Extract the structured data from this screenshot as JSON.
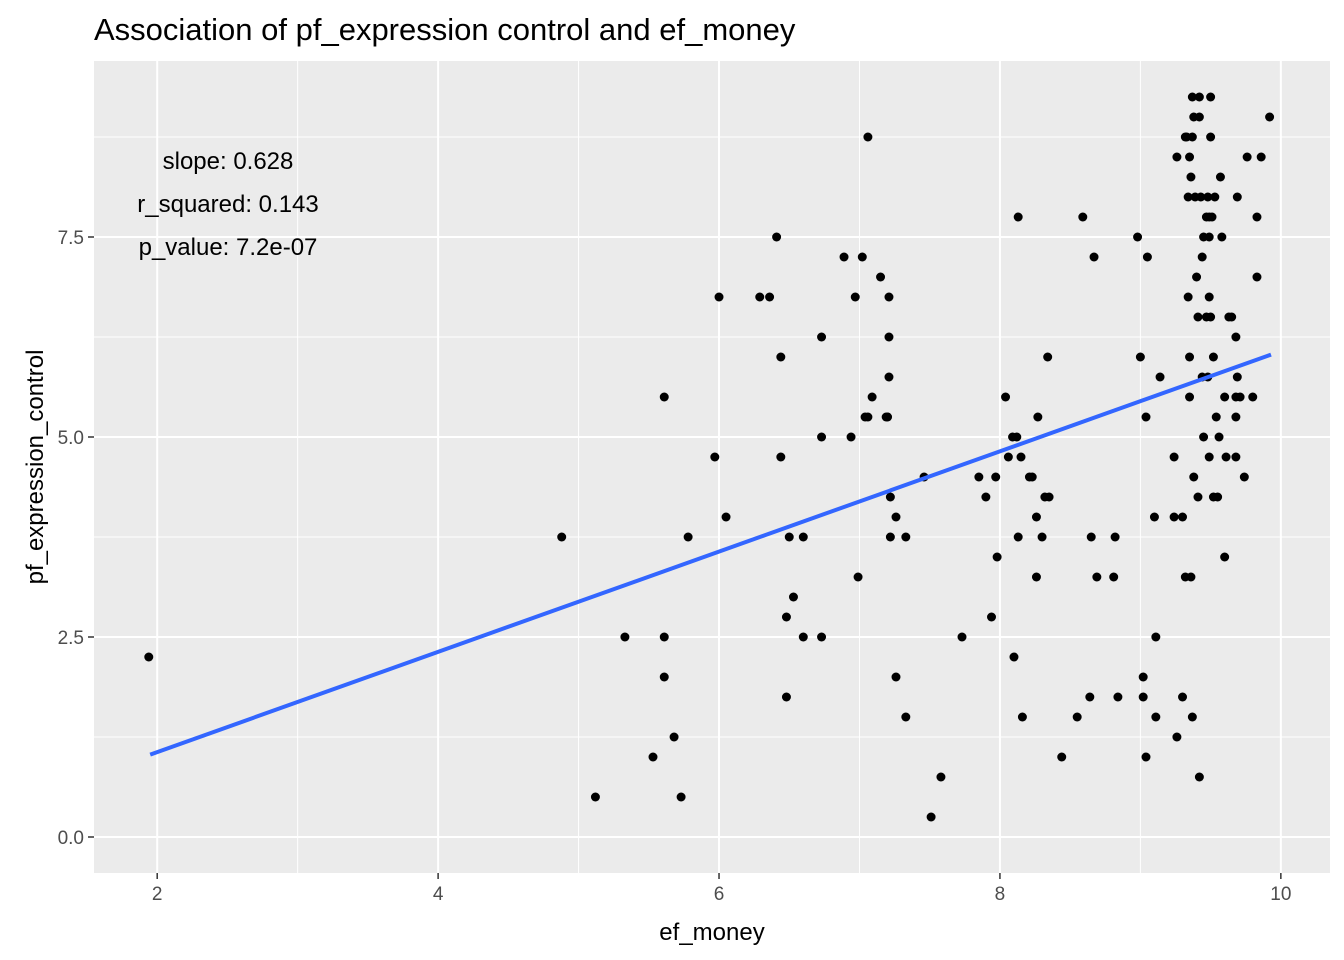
{
  "chart_data": {
    "type": "scatter",
    "title": "Association of pf_expression control and ef_money",
    "xlabel": "ef_money",
    "ylabel": "pf_expression_control",
    "xlim": [
      1.55,
      10.35
    ],
    "ylim": [
      -0.45,
      9.7
    ],
    "x_ticks": [
      2,
      4,
      6,
      8,
      10
    ],
    "x_tick_labels": [
      "2",
      "4",
      "6",
      "8",
      "10"
    ],
    "y_ticks": [
      0,
      2.5,
      5,
      7.5
    ],
    "y_tick_labels": [
      "0.0",
      "2.5",
      "5.0",
      "7.5"
    ],
    "grid": true,
    "background": "#ebebeb",
    "grid_color": "#ffffff",
    "point_color": "#000000",
    "annotations": [
      {
        "text": "slope: 0.628"
      },
      {
        "text": "r_squared: 0.143"
      },
      {
        "text": "p_value: 7.2e-07"
      }
    ],
    "fit_line": {
      "color": "#3366ff",
      "x": [
        1.95,
        9.93
      ],
      "y": [
        1.03,
        6.03
      ]
    },
    "points": [
      [
        1.94,
        2.25
      ],
      [
        4.88,
        3.75
      ],
      [
        5.12,
        0.5
      ],
      [
        5.33,
        2.5
      ],
      [
        5.53,
        1.0
      ],
      [
        5.61,
        5.5
      ],
      [
        5.61,
        2.5
      ],
      [
        5.61,
        2.0
      ],
      [
        5.68,
        1.25
      ],
      [
        5.73,
        0.5
      ],
      [
        5.78,
        3.75
      ],
      [
        5.97,
        4.75
      ],
      [
        6.0,
        6.75
      ],
      [
        6.05,
        4.0
      ],
      [
        6.29,
        6.75
      ],
      [
        6.36,
        6.75
      ],
      [
        6.41,
        7.5
      ],
      [
        6.44,
        6.0
      ],
      [
        6.44,
        4.75
      ],
      [
        6.48,
        2.75
      ],
      [
        6.48,
        1.75
      ],
      [
        6.5,
        3.75
      ],
      [
        6.53,
        3.0
      ],
      [
        6.6,
        3.75
      ],
      [
        6.6,
        2.5
      ],
      [
        6.73,
        6.25
      ],
      [
        6.73,
        5.0
      ],
      [
        6.73,
        2.5
      ],
      [
        6.89,
        7.25
      ],
      [
        6.94,
        5.0
      ],
      [
        6.97,
        6.75
      ],
      [
        6.99,
        3.25
      ],
      [
        7.02,
        7.25
      ],
      [
        7.04,
        5.25
      ],
      [
        7.06,
        5.25
      ],
      [
        7.06,
        8.75
      ],
      [
        7.09,
        5.5
      ],
      [
        7.15,
        7.0
      ],
      [
        7.19,
        5.25
      ],
      [
        7.2,
        5.25
      ],
      [
        7.21,
        6.75
      ],
      [
        7.21,
        6.25
      ],
      [
        7.21,
        5.75
      ],
      [
        7.22,
        4.25
      ],
      [
        7.22,
        3.75
      ],
      [
        7.26,
        4.0
      ],
      [
        7.26,
        2.0
      ],
      [
        7.33,
        3.75
      ],
      [
        7.33,
        1.5
      ],
      [
        7.46,
        4.5
      ],
      [
        7.51,
        0.25
      ],
      [
        7.58,
        0.75
      ],
      [
        7.73,
        2.5
      ],
      [
        7.85,
        4.5
      ],
      [
        7.9,
        4.25
      ],
      [
        7.94,
        2.75
      ],
      [
        7.97,
        4.5
      ],
      [
        7.98,
        3.5
      ],
      [
        8.04,
        5.5
      ],
      [
        8.06,
        4.75
      ],
      [
        8.09,
        5.0
      ],
      [
        8.1,
        2.25
      ],
      [
        8.12,
        5.0
      ],
      [
        8.13,
        7.75
      ],
      [
        8.13,
        3.75
      ],
      [
        8.15,
        4.75
      ],
      [
        8.16,
        1.5
      ],
      [
        8.21,
        4.5
      ],
      [
        8.23,
        4.5
      ],
      [
        8.26,
        4.0
      ],
      [
        8.26,
        3.25
      ],
      [
        8.27,
        5.25
      ],
      [
        8.3,
        3.75
      ],
      [
        8.32,
        4.25
      ],
      [
        8.34,
        6.0
      ],
      [
        8.35,
        4.25
      ],
      [
        8.44,
        1.0
      ],
      [
        8.55,
        1.5
      ],
      [
        8.59,
        7.75
      ],
      [
        8.64,
        1.75
      ],
      [
        8.65,
        3.75
      ],
      [
        8.67,
        7.25
      ],
      [
        8.69,
        3.25
      ],
      [
        8.81,
        3.25
      ],
      [
        8.82,
        3.75
      ],
      [
        8.84,
        1.75
      ],
      [
        8.98,
        7.5
      ],
      [
        9.0,
        6.0
      ],
      [
        9.02,
        2.0
      ],
      [
        9.02,
        1.75
      ],
      [
        9.04,
        1.0
      ],
      [
        9.04,
        5.25
      ],
      [
        9.05,
        7.25
      ],
      [
        9.1,
        4.0
      ],
      [
        9.11,
        2.5
      ],
      [
        9.11,
        1.5
      ],
      [
        9.14,
        5.75
      ],
      [
        9.24,
        4.75
      ],
      [
        9.24,
        4.0
      ],
      [
        9.26,
        8.5
      ],
      [
        9.26,
        1.25
      ],
      [
        9.3,
        4.0
      ],
      [
        9.3,
        1.75
      ],
      [
        9.32,
        3.25
      ],
      [
        9.32,
        8.75
      ],
      [
        9.33,
        8.75
      ],
      [
        9.34,
        8.0
      ],
      [
        9.34,
        6.75
      ],
      [
        9.35,
        8.5
      ],
      [
        9.35,
        6.0
      ],
      [
        9.35,
        5.5
      ],
      [
        9.36,
        8.25
      ],
      [
        9.36,
        3.25
      ],
      [
        9.37,
        1.5
      ],
      [
        9.37,
        9.25
      ],
      [
        9.37,
        8.75
      ],
      [
        9.38,
        9.0
      ],
      [
        9.38,
        4.5
      ],
      [
        9.39,
        8.0
      ],
      [
        9.4,
        7.0
      ],
      [
        9.41,
        6.5
      ],
      [
        9.41,
        4.25
      ],
      [
        9.42,
        9.25
      ],
      [
        9.42,
        9.0
      ],
      [
        9.42,
        0.75
      ],
      [
        9.43,
        8.0
      ],
      [
        9.44,
        7.25
      ],
      [
        9.44,
        5.75
      ],
      [
        9.45,
        5.0
      ],
      [
        9.45,
        7.5
      ],
      [
        9.47,
        7.75
      ],
      [
        9.47,
        6.5
      ],
      [
        9.48,
        8.0
      ],
      [
        9.48,
        5.75
      ],
      [
        9.49,
        7.75
      ],
      [
        9.49,
        7.5
      ],
      [
        9.49,
        6.75
      ],
      [
        9.49,
        4.75
      ],
      [
        9.5,
        9.25
      ],
      [
        9.5,
        8.75
      ],
      [
        9.5,
        6.5
      ],
      [
        9.51,
        7.75
      ],
      [
        9.52,
        6.0
      ],
      [
        9.52,
        4.25
      ],
      [
        9.53,
        8.0
      ],
      [
        9.54,
        5.25
      ],
      [
        9.55,
        4.25
      ],
      [
        9.56,
        5.0
      ],
      [
        9.57,
        8.25
      ],
      [
        9.58,
        7.5
      ],
      [
        9.6,
        3.5
      ],
      [
        9.6,
        5.5
      ],
      [
        9.61,
        4.75
      ],
      [
        9.63,
        6.5
      ],
      [
        9.65,
        6.5
      ],
      [
        9.68,
        6.25
      ],
      [
        9.68,
        5.5
      ],
      [
        9.68,
        5.25
      ],
      [
        9.68,
        4.75
      ],
      [
        9.69,
        8.0
      ],
      [
        9.69,
        5.75
      ],
      [
        9.71,
        5.5
      ],
      [
        9.74,
        4.5
      ],
      [
        9.76,
        8.5
      ],
      [
        9.8,
        5.5
      ],
      [
        9.83,
        7.75
      ],
      [
        9.83,
        7.0
      ],
      [
        9.86,
        8.5
      ],
      [
        9.92,
        9.0
      ]
    ]
  }
}
